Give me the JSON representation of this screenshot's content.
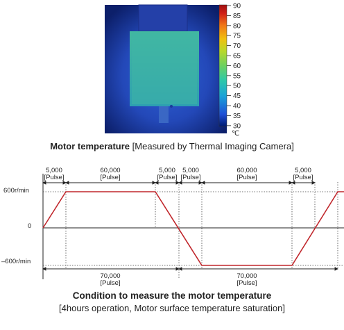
{
  "thermal": {
    "caption_bold": "Motor temperature",
    "caption_bracket": "[Measured by Thermal Imaging Camera]",
    "colorbar": {
      "ticks": [
        "90",
        "85",
        "80",
        "75",
        "70",
        "65",
        "60",
        "55",
        "50",
        "45",
        "40",
        "35",
        "30"
      ],
      "unit": "℃",
      "colors": [
        "#000000",
        "#001a70",
        "#1f4fd6",
        "#1aa2d8",
        "#2ec8a8",
        "#6cd060",
        "#b8d82a",
        "#f0c010",
        "#f07818",
        "#d02018",
        "#a01010",
        "#ffffff"
      ]
    }
  },
  "diagram": {
    "y_labels": {
      "top": "600r/min",
      "zero": "0",
      "bottom": "–600r/min"
    },
    "top_segments": [
      {
        "value": "5,000",
        "unit": "[Pulse]"
      },
      {
        "value": "60,000",
        "unit": "[Pulse]"
      },
      {
        "value": "5,000",
        "unit": "[Pulse]"
      },
      {
        "value": "5,000",
        "unit": "[Pulse]"
      },
      {
        "value": "60,000",
        "unit": "[Pulse]"
      },
      {
        "value": "5,000",
        "unit": "[Pulse]"
      }
    ],
    "bottom_segments": [
      {
        "value": "70,000",
        "unit": "[Pulse]"
      },
      {
        "value": "70,000",
        "unit": "[Pulse]"
      }
    ],
    "line_color": "#c0262b",
    "title": "Condition to measure the motor temperature",
    "subtitle": "[4hours operation, Motor surface temperature saturation]"
  }
}
